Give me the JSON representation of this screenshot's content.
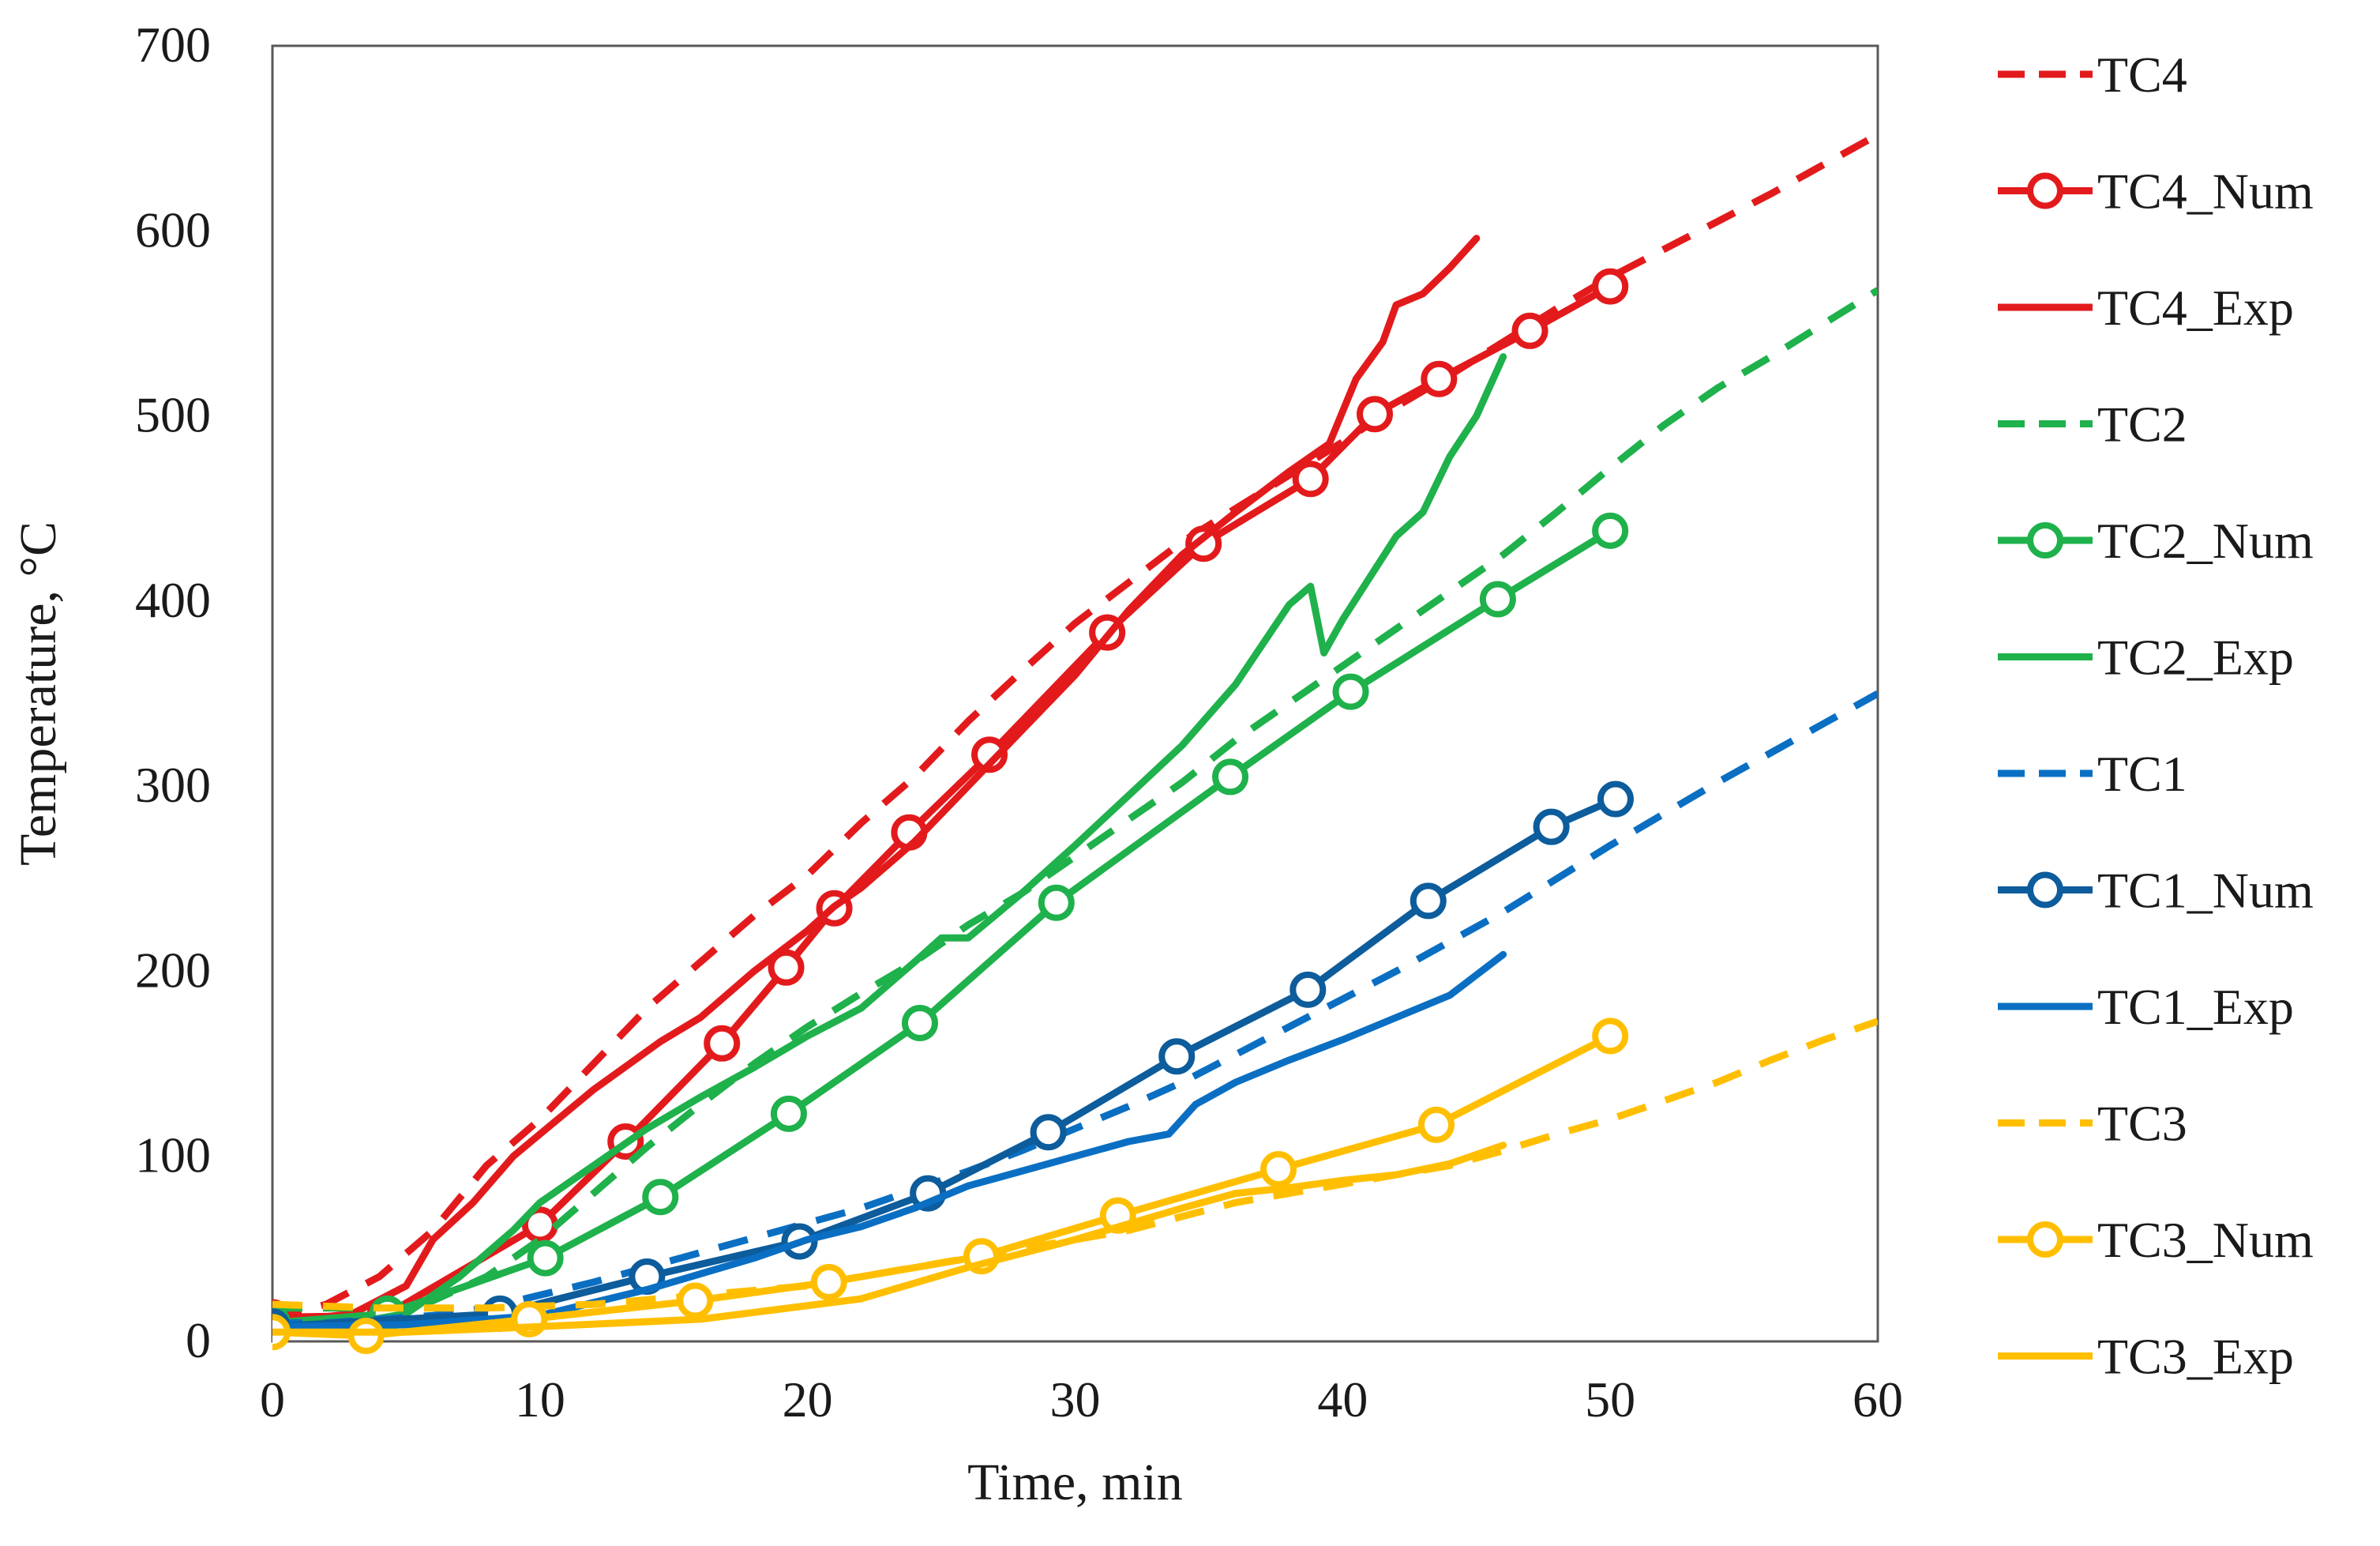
{
  "chart_data": {
    "type": "line",
    "title": "",
    "xlabel": "Time, min",
    "ylabel": "Temperature, °C",
    "xlim": [
      0,
      60
    ],
    "ylim": [
      0,
      700
    ],
    "xticks": [
      0,
      10,
      20,
      30,
      40,
      50,
      60
    ],
    "yticks": [
      0,
      100,
      200,
      300,
      400,
      500,
      600,
      700
    ],
    "grid": false,
    "legend_position": "right",
    "series": [
      {
        "name": "TC4",
        "color": "#e31a1c",
        "style": "dashed",
        "marker": "none",
        "x": [
          0,
          2,
          4,
          6,
          8,
          10,
          12,
          14,
          16,
          18,
          20,
          22,
          24,
          26,
          28,
          30,
          32,
          34,
          36,
          38,
          40,
          42,
          44,
          46,
          48,
          50,
          52,
          54,
          56,
          58,
          60
        ],
        "y": [
          12,
          20,
          35,
          60,
          95,
          120,
          150,
          180,
          205,
          230,
          252,
          280,
          305,
          335,
          362,
          388,
          410,
          432,
          450,
          468,
          486,
          505,
          522,
          540,
          558,
          575,
          590,
          605,
          620,
          636,
          652
        ]
      },
      {
        "name": "TC4_Num",
        "color": "#e31a1c",
        "style": "solid",
        "marker": "circle",
        "x": [
          0,
          4.2,
          10,
          13.2,
          16.8,
          19.2,
          21,
          23.8,
          26.8,
          31.2,
          34.8,
          38.8,
          41.2,
          43.6,
          47,
          50
        ],
        "y": [
          13,
          14,
          63,
          108,
          161,
          202,
          234,
          275,
          317,
          383,
          431,
          466,
          501,
          520,
          546,
          570
        ]
      },
      {
        "name": "TC4_Exp",
        "color": "#e31a1c",
        "style": "solid",
        "marker": "none",
        "x": [
          0,
          3,
          5,
          6,
          7.5,
          9,
          10,
          12,
          14.5,
          16,
          18,
          20,
          21,
          22,
          24,
          26,
          28,
          30,
          32,
          34,
          36,
          38,
          39.5,
          40.5,
          41.5,
          42,
          43,
          44,
          45
        ],
        "y": [
          10,
          15,
          30,
          55,
          75,
          100,
          112,
          136,
          162,
          175,
          200,
          222,
          235,
          245,
          270,
          300,
          330,
          360,
          395,
          425,
          448,
          470,
          485,
          520,
          540,
          560,
          566,
          580,
          596
        ]
      },
      {
        "name": "TC2",
        "color": "#1fb14b",
        "style": "dashed",
        "marker": "none",
        "x": [
          0,
          2,
          4,
          6,
          8,
          10,
          12,
          14,
          16,
          18,
          20,
          22,
          24,
          26,
          28,
          30,
          32,
          34,
          36,
          38,
          40,
          42,
          44,
          46,
          48,
          50,
          52,
          54,
          56,
          58,
          60
        ],
        "y": [
          18,
          18,
          18,
          22,
          35,
          55,
          80,
          105,
          128,
          150,
          170,
          188,
          205,
          225,
          242,
          262,
          282,
          302,
          325,
          345,
          365,
          385,
          405,
          425,
          448,
          472,
          495,
          515,
          532,
          550,
          568
        ]
      },
      {
        "name": "TC2_Num",
        "color": "#1fb14b",
        "style": "solid",
        "marker": "circle",
        "x": [
          0,
          4.3,
          10.2,
          14.5,
          19.3,
          24.2,
          29.3,
          35.8,
          40.3,
          45.8,
          50
        ],
        "y": [
          10,
          15,
          45,
          78,
          123,
          172,
          237,
          305,
          351,
          401,
          438
        ]
      },
      {
        "name": "TC2_Exp",
        "color": "#1fb14b",
        "style": "solid",
        "marker": "none",
        "x": [
          0,
          3,
          5,
          7,
          9,
          10,
          12,
          14,
          16,
          18,
          20,
          22,
          24,
          25,
          26,
          28,
          30,
          32,
          34,
          36,
          38,
          38.8,
          39.3,
          40,
          42,
          43,
          44,
          45,
          46
        ],
        "y": [
          10,
          10,
          15,
          35,
          60,
          75,
          95,
          115,
          132,
          148,
          165,
          180,
          205,
          218,
          218,
          242,
          268,
          295,
          322,
          355,
          398,
          408,
          372,
          390,
          435,
          448,
          478,
          500,
          532
        ]
      },
      {
        "name": "TC1",
        "color": "#0a6fc2",
        "style": "dashed",
        "marker": "none",
        "x": [
          0,
          2,
          4,
          6,
          8,
          10,
          12,
          14,
          16,
          18,
          20,
          22,
          24,
          26,
          28,
          30,
          32,
          34,
          36,
          38,
          40,
          42,
          44,
          46,
          48,
          50,
          52,
          54,
          56,
          58,
          60
        ],
        "y": [
          10,
          10,
          12,
          14,
          18,
          25,
          32,
          40,
          48,
          56,
          64,
          72,
          82,
          92,
          103,
          115,
          127,
          140,
          155,
          170,
          185,
          200,
          216,
          232,
          250,
          268,
          285,
          302,
          318,
          334,
          350
        ]
      },
      {
        "name": "TC1_Num",
        "color": "#0d5c9c",
        "style": "solid",
        "marker": "circle",
        "x": [
          0,
          8.5,
          14,
          19.7,
          24.5,
          29,
          33.8,
          38.7,
          43.2,
          47.8,
          50.2
        ],
        "y": [
          8,
          15,
          35,
          54,
          80,
          113,
          154,
          190,
          238,
          278,
          293
        ]
      },
      {
        "name": "TC1_Exp",
        "color": "#0a6fc2",
        "style": "solid",
        "marker": "none",
        "x": [
          0,
          5,
          10,
          14,
          18,
          20,
          22,
          24,
          26,
          28,
          30,
          32,
          33.5,
          34.5,
          36,
          38,
          40,
          42,
          44,
          46
        ],
        "y": [
          8,
          9,
          14,
          28,
          45,
          55,
          62,
          72,
          84,
          92,
          100,
          108,
          112,
          128,
          140,
          152,
          163,
          175,
          187,
          209
        ]
      },
      {
        "name": "TC3",
        "color": "#ffbf00",
        "style": "dashed",
        "marker": "none",
        "x": [
          0,
          4,
          8,
          12,
          16,
          20,
          24,
          28,
          32,
          36,
          40,
          44,
          46,
          48,
          50,
          52,
          54,
          56,
          58,
          60
        ],
        "y": [
          20,
          18,
          18,
          20,
          25,
          30,
          40,
          50,
          60,
          75,
          85,
          95,
          103,
          112,
          120,
          130,
          140,
          152,
          163,
          173
        ]
      },
      {
        "name": "TC3_Num",
        "color": "#ffbf00",
        "style": "solid",
        "marker": "circle",
        "x": [
          0,
          3.5,
          9.6,
          15.8,
          20.8,
          26.5,
          31.6,
          37.6,
          43.5,
          50
        ],
        "y": [
          5,
          3,
          12,
          22,
          32,
          46,
          68,
          93,
          117,
          165
        ]
      },
      {
        "name": "TC3_Exp",
        "color": "#ffbf00",
        "style": "solid",
        "marker": "none",
        "x": [
          0,
          5,
          10,
          16,
          22,
          26,
          30,
          34,
          36,
          38,
          40,
          42,
          44,
          46
        ],
        "y": [
          5,
          5,
          8,
          12,
          23,
          40,
          55,
          72,
          80,
          83,
          87,
          90,
          96,
          106
        ]
      }
    ]
  }
}
